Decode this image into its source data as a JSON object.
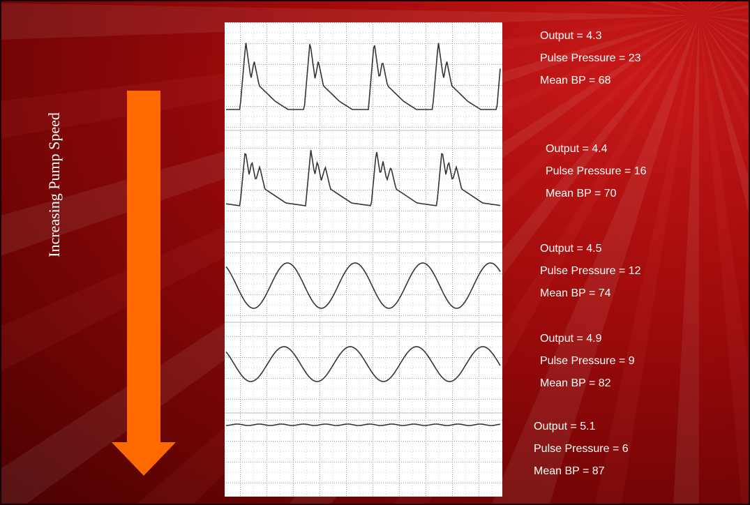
{
  "slide": {
    "side_label": "Increasing Pump Speed",
    "readings": [
      {
        "lines": [
          "Output = 4.3",
          "Pulse Pressure = 23",
          "Mean BP = 68"
        ]
      },
      {
        "lines": [
          "Output = 4.4",
          "Pulse Pressure = 16",
          "Mean BP = 70"
        ]
      },
      {
        "lines": [
          "Output = 4.5",
          "Pulse Pressure = 12",
          "Mean BP = 74"
        ]
      },
      {
        "lines": [
          "Output = 4.9",
          "Pulse Pressure = 9",
          "Mean BP = 82"
        ]
      },
      {
        "lines": [
          "Output = 5.1",
          "Pulse Pressure = 6",
          "Mean BP = 87"
        ]
      }
    ]
  }
}
